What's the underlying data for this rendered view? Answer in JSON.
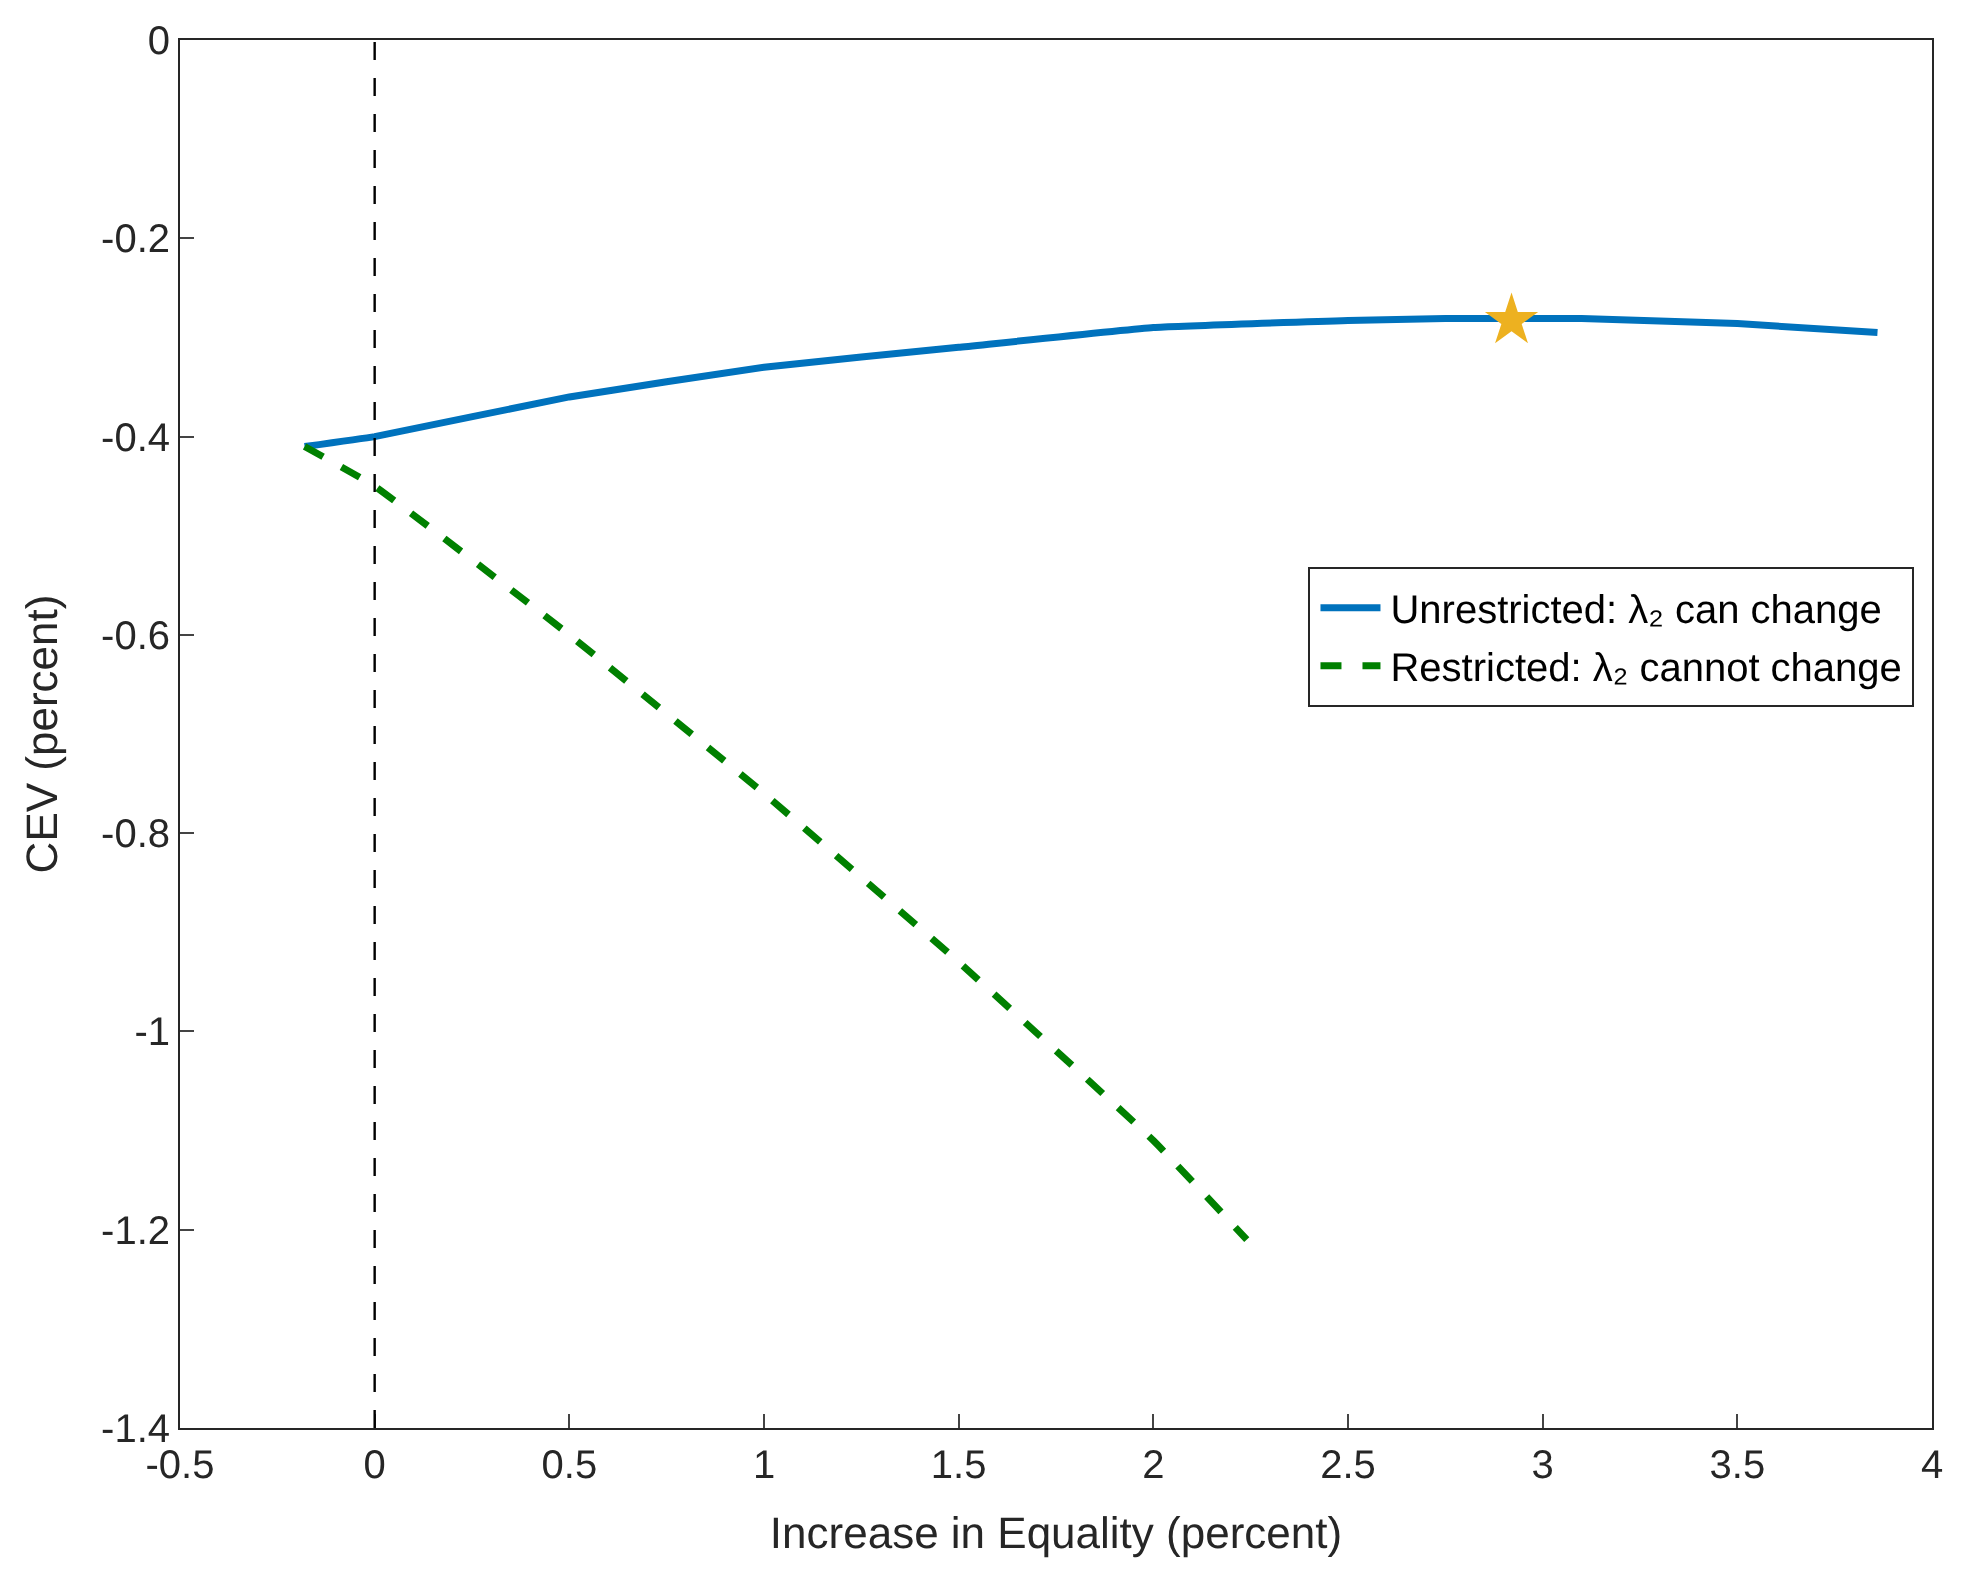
{
  "chart_data": {
    "type": "line",
    "xlabel": "Increase in Equality (percent)",
    "ylabel": "CEV (percent)",
    "xlim": [
      -0.5,
      4
    ],
    "xticks": [
      -0.5,
      0,
      0.5,
      1,
      1.5,
      2,
      2.5,
      3,
      3.5,
      4
    ],
    "ylim": [
      -1.4,
      0
    ],
    "yticks": [
      -1.4,
      -1.2,
      -1,
      -0.8,
      -0.6,
      -0.4,
      -0.2,
      0
    ],
    "legend": "right",
    "series": [
      {
        "name": "Unrestricted: λ₂ can change",
        "color": "#0072bd",
        "line_style": "solid",
        "marker": "none",
        "x": [
          -0.18,
          0,
          0.5,
          1,
          1.5,
          2,
          2.5,
          2.75,
          3.1,
          3.5,
          3.86
        ],
        "values": [
          -0.41,
          -0.4,
          -0.36,
          -0.33,
          -0.31,
          -0.29,
          -0.283,
          -0.281,
          -0.281,
          -0.286,
          -0.295
        ]
      },
      {
        "name": "Restricted: λ₂ cannot change",
        "color": "#008000",
        "line_style": "dashed",
        "marker": "none",
        "x": [
          -0.18,
          0,
          0.5,
          1,
          1.5,
          2,
          2.24
        ],
        "values": [
          -0.41,
          -0.45,
          -0.6,
          -0.76,
          -0.93,
          -1.11,
          -1.21
        ]
      },
      {
        "type": "scatter",
        "color": "#edb120",
        "marker": "star",
        "x": [
          2.92
        ],
        "values": [
          -0.283
        ]
      }
    ],
    "ref_lines": [
      {
        "axis": "x",
        "value": 0,
        "color": "#000000",
        "line_style": "dashed"
      }
    ]
  }
}
